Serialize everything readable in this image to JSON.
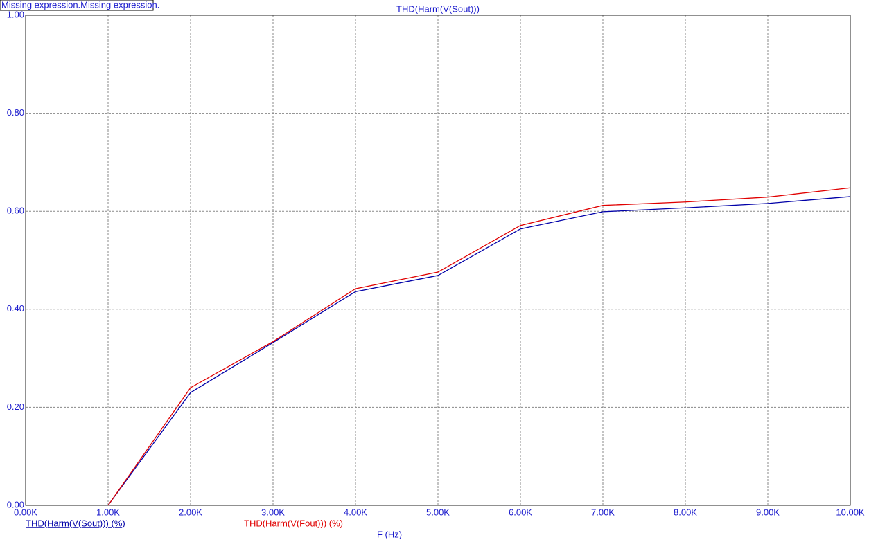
{
  "header": {
    "note": "Missing expression.Missing expression."
  },
  "chart_data": {
    "type": "line",
    "title": "THD(Harm(V(Sout)))",
    "x_label": "F (Hz)",
    "x": [
      1000,
      2000,
      3000,
      4000,
      5000,
      6000,
      7000,
      8000,
      9000,
      10000
    ],
    "series": [
      {
        "name": "THD(Harm(V(Sout))) (%)",
        "color": "#0000a8",
        "values": [
          0,
          0.23,
          0.332,
          0.436,
          0.469,
          0.564,
          0.599,
          0.607,
          0.616,
          0.63
        ]
      },
      {
        "name": "THD(Harm(V(Fout))) (%)",
        "color": "#e00000",
        "values": [
          0,
          0.24,
          0.334,
          0.442,
          0.476,
          0.571,
          0.612,
          0.619,
          0.629,
          0.648
        ]
      }
    ],
    "xlim": [
      0,
      10000
    ],
    "xticks": [
      {
        "value": 0,
        "label": "0.00K"
      },
      {
        "value": 1000,
        "label": "1.00K"
      },
      {
        "value": 2000,
        "label": "2.00K"
      },
      {
        "value": 3000,
        "label": "3.00K"
      },
      {
        "value": 4000,
        "label": "4.00K"
      },
      {
        "value": 5000,
        "label": "5.00K"
      },
      {
        "value": 6000,
        "label": "6.00K"
      },
      {
        "value": 7000,
        "label": "7.00K"
      },
      {
        "value": 8000,
        "label": "8.00K"
      },
      {
        "value": 9000,
        "label": "9.00K"
      },
      {
        "value": 10000,
        "label": "10.00K"
      }
    ],
    "ylim": [
      0,
      1
    ],
    "yticks": [
      {
        "value": 0,
        "label": "0.00"
      },
      {
        "value": 0.2,
        "label": "0.20"
      },
      {
        "value": 0.4,
        "label": "0.40"
      },
      {
        "value": 0.6,
        "label": "0.60"
      },
      {
        "value": 0.8,
        "label": "0.80"
      },
      {
        "value": 1,
        "label": "1.00"
      }
    ],
    "grid": true
  }
}
